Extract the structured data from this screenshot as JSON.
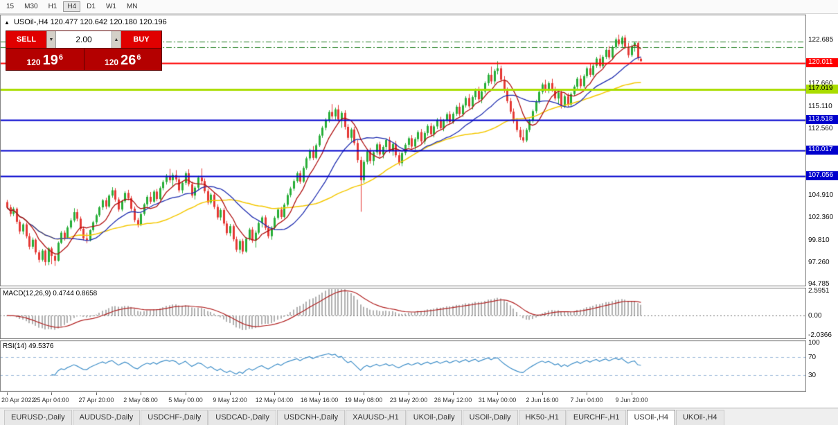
{
  "toolbar": {
    "timeframes": [
      "15",
      "M30",
      "H1",
      "H4",
      "D1",
      "W1",
      "MN"
    ],
    "active": "H4"
  },
  "chart": {
    "title_symbol": "USOil-,H4",
    "title_ohlc": "120.477 120.642 120.180 120.196",
    "collapse_icon": "▲",
    "trade_panel": {
      "sell_label": "SELL",
      "buy_label": "BUY",
      "volume": "2.00",
      "down_icon": "▼",
      "up_icon": "▲",
      "sell": {
        "prefix": "120",
        "big": "19",
        "sup": "6"
      },
      "buy": {
        "prefix": "120",
        "big": "26",
        "sup": "6"
      }
    },
    "price_axis": {
      "labels": [
        "122.685",
        "117.660",
        "115.110",
        "112.560",
        "104.910",
        "102.360",
        "99.810",
        "97.260",
        "94.785"
      ]
    },
    "hlines": [
      {
        "price": 120.011,
        "label": "120.011",
        "color": "#ff0000",
        "width": 2,
        "style": "solid",
        "tag_bg": "#ff0000",
        "tag_fg": "#ffffff"
      },
      {
        "price": 117.019,
        "label": "117.019",
        "color": "#aadd00",
        "width": 3,
        "style": "solid",
        "tag_bg": "#aadd00",
        "tag_fg": "#000000"
      },
      {
        "price": 113.518,
        "label": "113.518",
        "color": "#0000cd",
        "width": 2,
        "style": "solid",
        "tag_bg": "#0000cd",
        "tag_fg": "#ffffff"
      },
      {
        "price": 110.017,
        "label": "110.017",
        "color": "#0000cd",
        "width": 2,
        "style": "solid",
        "tag_bg": "#0000cd",
        "tag_fg": "#ffffff"
      },
      {
        "price": 107.056,
        "label": "107.056",
        "color": "#0000cd",
        "width": 2,
        "style": "solid",
        "tag_bg": "#0000cd",
        "tag_fg": "#ffffff"
      },
      {
        "price": 122.45,
        "label": null,
        "color": "#1e7d1e",
        "width": 1,
        "style": "dashdot"
      },
      {
        "price": 121.85,
        "label": null,
        "color": "#1e7d1e",
        "width": 1,
        "style": "dashdot"
      }
    ],
    "candle_colors": {
      "up": "#27ae38",
      "down": "#e53935"
    },
    "ma_colors": {
      "fast": "#b01010",
      "mid": "#1f2db0",
      "slow": "#f5c800"
    }
  },
  "macd": {
    "label": "MACD(12,26,9)",
    "values": "0.4744 0.8658",
    "axis_labels": [
      "2.5951",
      "0.00",
      "-2.0366"
    ],
    "params": {
      "fast": 12,
      "slow": 26,
      "signal": 9
    },
    "y_range": [
      -2.45,
      2.9
    ],
    "bar_color": "#b0b0b0",
    "signal_color": "#b22222"
  },
  "rsi": {
    "label": "RSI(14)",
    "value": "49.5376",
    "axis_labels": [
      "100",
      "70",
      "30"
    ],
    "levels": [
      70,
      30
    ],
    "period": 14,
    "y_range": [
      -5,
      105
    ],
    "line_color": "#3f8fc9",
    "level_color": "#9ab7d9"
  },
  "tabbar": {
    "tabs": [
      "EURUSD-,Daily",
      "AUDUSD-,Daily",
      "USDCHF-,Daily",
      "USDCAD-,Daily",
      "USDCNH-,Daily",
      "XAUUSD-,H1",
      "UKOil-,Daily",
      "USOil-,Daily",
      "HK50-,H1",
      "EURCHF-,H1",
      "USOil-,H4",
      "UKOil-,H4"
    ],
    "active": "USOil-,H4"
  },
  "chart_data": {
    "type": "candlestick",
    "title": "USOil-,H4",
    "timeframe": "H4",
    "y_range": [
      94.47,
      125.54
    ],
    "x_labels": [
      "20 Apr 2022",
      "25 Apr 04:00",
      "27 Apr 20:00",
      "2 May 08:00",
      "5 May 00:00",
      "9 May 12:00",
      "12 May 04:00",
      "16 May 16:00",
      "19 May 08:00",
      "23 May 20:00",
      "26 May 12:00",
      "31 May 00:00",
      "2 Jun 16:00",
      "7 Jun 04:00",
      "9 Jun 20:00"
    ],
    "x_label_indices": [
      0,
      14,
      28,
      42,
      56,
      70,
      84,
      98,
      112,
      126,
      140,
      154,
      168,
      182,
      196
    ],
    "overlays": [
      {
        "name": "ma-fast",
        "period": 8,
        "color": "#b01010"
      },
      {
        "name": "ma-mid",
        "period": 20,
        "color": "#1f2db0"
      },
      {
        "name": "ma-slow",
        "period": 45,
        "color": "#f5c800"
      }
    ],
    "ohlc": [
      [
        104.1,
        104.35,
        103.3,
        103.5
      ],
      [
        103.5,
        103.8,
        102.45,
        102.75
      ],
      [
        102.75,
        103.55,
        102.5,
        103.35
      ],
      [
        103.35,
        103.5,
        101.6,
        101.85
      ],
      [
        101.85,
        102.1,
        100.45,
        100.75
      ],
      [
        100.75,
        101.7,
        100.4,
        101.55
      ],
      [
        101.55,
        101.75,
        99.95,
        100.2
      ],
      [
        100.2,
        100.55,
        98.7,
        99.0
      ],
      [
        99.0,
        100.05,
        98.75,
        99.8
      ],
      [
        99.8,
        99.95,
        98.1,
        98.35
      ],
      [
        98.35,
        98.6,
        97.2,
        97.5
      ],
      [
        97.5,
        98.75,
        97.3,
        98.55
      ],
      [
        98.55,
        98.7,
        96.85,
        97.25
      ],
      [
        97.25,
        98.95,
        96.9,
        98.8
      ],
      [
        98.8,
        99.0,
        97.0,
        97.95
      ],
      [
        97.95,
        98.25,
        96.8,
        97.4
      ],
      [
        97.4,
        99.6,
        97.3,
        99.45
      ],
      [
        99.45,
        100.8,
        99.3,
        100.6
      ],
      [
        100.6,
        100.85,
        99.7,
        100.0
      ],
      [
        100.0,
        101.4,
        99.9,
        101.2
      ],
      [
        101.2,
        102.25,
        101.0,
        102.0
      ],
      [
        102.0,
        103.4,
        101.8,
        102.95
      ],
      [
        102.95,
        103.3,
        101.9,
        102.2
      ],
      [
        102.2,
        102.45,
        100.8,
        101.05
      ],
      [
        101.05,
        101.3,
        99.7,
        99.95
      ],
      [
        99.95,
        100.6,
        99.4,
        99.75
      ],
      [
        99.75,
        101.0,
        99.6,
        100.9
      ],
      [
        100.9,
        101.95,
        100.7,
        101.8
      ],
      [
        101.8,
        102.75,
        101.55,
        102.6
      ],
      [
        102.6,
        103.65,
        102.4,
        103.5
      ],
      [
        103.5,
        104.45,
        103.2,
        104.3
      ],
      [
        104.3,
        104.6,
        103.3,
        103.6
      ],
      [
        103.6,
        105.0,
        103.45,
        104.85
      ],
      [
        104.85,
        105.8,
        104.6,
        105.45
      ],
      [
        105.45,
        105.7,
        104.15,
        104.4
      ],
      [
        104.4,
        104.65,
        103.0,
        103.25
      ],
      [
        103.25,
        104.35,
        103.05,
        104.2
      ],
      [
        104.2,
        105.35,
        104.0,
        105.15
      ],
      [
        105.15,
        105.5,
        104.3,
        104.55
      ],
      [
        104.55,
        104.8,
        103.1,
        103.35
      ],
      [
        103.35,
        103.6,
        101.8,
        102.05
      ],
      [
        102.05,
        102.3,
        101.2,
        101.5
      ],
      [
        101.5,
        102.9,
        101.35,
        102.75
      ],
      [
        102.75,
        104.0,
        102.55,
        103.85
      ],
      [
        103.85,
        104.9,
        103.6,
        104.7
      ],
      [
        104.7,
        105.25,
        103.9,
        104.15
      ],
      [
        104.15,
        105.5,
        104.0,
        105.3
      ],
      [
        105.3,
        105.6,
        104.2,
        104.45
      ],
      [
        104.45,
        105.9,
        104.3,
        105.7
      ],
      [
        105.7,
        106.6,
        105.45,
        106.4
      ],
      [
        106.4,
        107.3,
        106.1,
        107.1
      ],
      [
        107.1,
        107.9,
        106.3,
        106.6
      ],
      [
        106.6,
        107.45,
        105.8,
        107.2
      ],
      [
        107.2,
        107.75,
        106.4,
        106.7
      ],
      [
        106.7,
        107.0,
        105.2,
        105.45
      ],
      [
        105.45,
        106.5,
        105.1,
        106.3
      ],
      [
        106.3,
        107.6,
        106.05,
        107.4
      ],
      [
        107.4,
        107.85,
        105.9,
        106.15
      ],
      [
        106.15,
        106.45,
        104.6,
        104.85
      ],
      [
        104.85,
        105.95,
        104.4,
        105.75
      ],
      [
        105.75,
        107.1,
        105.55,
        106.9
      ],
      [
        106.9,
        107.95,
        106.2,
        106.5
      ],
      [
        106.5,
        106.8,
        105.1,
        105.35
      ],
      [
        105.35,
        105.6,
        103.8,
        104.05
      ],
      [
        104.05,
        105.15,
        103.85,
        104.95
      ],
      [
        104.95,
        105.2,
        103.3,
        103.55
      ],
      [
        103.55,
        103.85,
        102.1,
        102.35
      ],
      [
        102.35,
        103.4,
        102.0,
        103.2
      ],
      [
        103.2,
        103.45,
        101.4,
        101.65
      ],
      [
        101.65,
        101.95,
        100.3,
        100.55
      ],
      [
        100.55,
        101.6,
        100.2,
        101.35
      ],
      [
        101.35,
        101.55,
        99.6,
        99.85
      ],
      [
        99.85,
        100.15,
        98.4,
        98.65
      ],
      [
        98.65,
        99.85,
        98.25,
        99.65
      ],
      [
        99.65,
        99.9,
        98.15,
        98.45
      ],
      [
        98.45,
        100.1,
        98.3,
        99.9
      ],
      [
        99.9,
        101.15,
        99.7,
        100.95
      ],
      [
        100.95,
        101.25,
        99.45,
        99.7
      ],
      [
        99.7,
        100.85,
        98.9,
        100.6
      ],
      [
        100.6,
        101.9,
        100.4,
        101.7
      ],
      [
        101.7,
        102.55,
        101.2,
        102.35
      ],
      [
        102.35,
        102.6,
        100.9,
        101.15
      ],
      [
        101.15,
        101.45,
        99.95,
        100.2
      ],
      [
        100.2,
        101.35,
        99.8,
        101.15
      ],
      [
        101.15,
        102.5,
        100.95,
        102.3
      ],
      [
        102.3,
        103.45,
        102.1,
        103.25
      ],
      [
        103.25,
        103.55,
        102.15,
        102.4
      ],
      [
        102.4,
        104.0,
        102.25,
        103.8
      ],
      [
        103.8,
        105.1,
        103.6,
        104.9
      ],
      [
        104.9,
        105.85,
        104.65,
        105.65
      ],
      [
        105.65,
        106.7,
        105.4,
        106.5
      ],
      [
        106.5,
        107.6,
        106.3,
        107.4
      ],
      [
        107.4,
        107.7,
        106.2,
        106.45
      ],
      [
        106.45,
        108.2,
        106.3,
        108.0
      ],
      [
        108.0,
        109.3,
        107.8,
        109.1
      ],
      [
        109.1,
        110.2,
        108.85,
        110.0
      ],
      [
        110.0,
        110.5,
        108.9,
        109.15
      ],
      [
        109.15,
        110.8,
        109.0,
        110.6
      ],
      [
        110.6,
        111.9,
        110.4,
        111.7
      ],
      [
        111.7,
        112.8,
        111.45,
        112.6
      ],
      [
        112.6,
        113.7,
        112.3,
        113.5
      ],
      [
        113.5,
        114.6,
        113.2,
        114.4
      ],
      [
        114.4,
        115.3,
        113.6,
        113.9
      ],
      [
        113.9,
        114.9,
        113.5,
        114.7
      ],
      [
        114.7,
        115.2,
        113.3,
        113.55
      ],
      [
        113.55,
        114.5,
        112.6,
        114.3
      ],
      [
        114.3,
        114.6,
        112.4,
        112.7
      ],
      [
        112.7,
        113.0,
        111.2,
        111.45
      ],
      [
        111.45,
        112.6,
        111.0,
        112.4
      ],
      [
        112.4,
        112.7,
        110.6,
        110.85
      ],
      [
        110.85,
        111.2,
        108.6,
        108.9
      ],
      [
        108.9,
        109.3,
        103.0,
        106.6
      ],
      [
        106.6,
        108.9,
        106.3,
        108.7
      ],
      [
        108.7,
        110.1,
        108.4,
        109.9
      ],
      [
        109.9,
        110.3,
        108.5,
        108.8
      ],
      [
        108.8,
        110.0,
        108.3,
        109.8
      ],
      [
        109.8,
        110.9,
        109.5,
        110.7
      ],
      [
        110.7,
        111.0,
        109.3,
        109.55
      ],
      [
        109.55,
        110.6,
        109.1,
        110.4
      ],
      [
        110.4,
        111.4,
        110.1,
        111.2
      ],
      [
        111.2,
        111.55,
        109.7,
        109.95
      ],
      [
        109.95,
        110.95,
        109.4,
        110.75
      ],
      [
        110.75,
        111.1,
        109.2,
        109.45
      ],
      [
        109.45,
        109.8,
        108.3,
        108.55
      ],
      [
        108.55,
        109.9,
        108.2,
        109.7
      ],
      [
        109.7,
        110.85,
        109.45,
        110.65
      ],
      [
        110.65,
        111.6,
        110.35,
        111.4
      ],
      [
        111.4,
        111.75,
        110.2,
        110.45
      ],
      [
        110.45,
        111.5,
        110.05,
        111.3
      ],
      [
        111.3,
        112.3,
        111.0,
        112.1
      ],
      [
        112.1,
        112.45,
        110.8,
        111.05
      ],
      [
        111.05,
        112.2,
        110.7,
        112.0
      ],
      [
        112.0,
        113.0,
        111.7,
        112.8
      ],
      [
        112.8,
        113.15,
        111.6,
        111.85
      ],
      [
        111.85,
        112.95,
        111.5,
        112.75
      ],
      [
        112.75,
        113.7,
        112.45,
        113.5
      ],
      [
        113.5,
        113.85,
        112.3,
        112.55
      ],
      [
        112.55,
        113.6,
        112.2,
        113.4
      ],
      [
        113.4,
        114.35,
        113.1,
        114.15
      ],
      [
        114.15,
        114.5,
        113.0,
        113.25
      ],
      [
        113.25,
        114.4,
        113.05,
        114.2
      ],
      [
        114.2,
        115.2,
        113.95,
        115.0
      ],
      [
        115.0,
        115.45,
        113.9,
        114.15
      ],
      [
        114.15,
        115.35,
        113.85,
        115.15
      ],
      [
        115.15,
        116.2,
        114.9,
        116.0
      ],
      [
        116.0,
        116.45,
        114.8,
        115.05
      ],
      [
        115.05,
        116.3,
        114.7,
        116.1
      ],
      [
        116.1,
        117.1,
        115.8,
        116.9
      ],
      [
        116.9,
        117.3,
        115.6,
        115.85
      ],
      [
        115.85,
        116.95,
        115.4,
        116.75
      ],
      [
        116.75,
        117.9,
        116.5,
        117.7
      ],
      [
        117.7,
        118.85,
        117.4,
        118.65
      ],
      [
        118.65,
        119.6,
        117.6,
        117.9
      ],
      [
        117.9,
        119.3,
        117.55,
        119.1
      ],
      [
        119.1,
        120.2,
        118.7,
        119.4
      ],
      [
        119.4,
        119.7,
        117.8,
        118.1
      ],
      [
        118.1,
        118.5,
        116.6,
        116.85
      ],
      [
        116.85,
        117.2,
        115.4,
        115.65
      ],
      [
        115.65,
        116.0,
        114.2,
        114.45
      ],
      [
        114.45,
        114.8,
        113.1,
        113.35
      ],
      [
        113.35,
        113.7,
        112.1,
        112.35
      ],
      [
        112.35,
        112.7,
        111.2,
        111.5
      ],
      [
        111.5,
        112.4,
        110.9,
        111.15
      ],
      [
        111.15,
        112.55,
        110.95,
        112.35
      ],
      [
        112.35,
        113.6,
        112.1,
        113.4
      ],
      [
        113.4,
        114.7,
        113.15,
        114.5
      ],
      [
        114.5,
        115.8,
        114.25,
        115.6
      ],
      [
        115.6,
        116.9,
        115.35,
        116.7
      ],
      [
        116.7,
        117.75,
        116.45,
        117.55
      ],
      [
        117.55,
        118.1,
        116.6,
        116.85
      ],
      [
        116.85,
        117.9,
        116.55,
        117.7
      ],
      [
        117.7,
        118.2,
        116.7,
        116.95
      ],
      [
        116.95,
        117.3,
        115.7,
        115.95
      ],
      [
        115.95,
        116.8,
        115.3,
        116.6
      ],
      [
        116.6,
        116.9,
        114.8,
        115.1
      ],
      [
        115.1,
        116.4,
        114.85,
        116.2
      ],
      [
        116.2,
        116.55,
        115.0,
        115.25
      ],
      [
        115.25,
        116.65,
        115.05,
        116.45
      ],
      [
        116.45,
        117.5,
        116.2,
        117.3
      ],
      [
        117.3,
        118.4,
        117.05,
        118.2
      ],
      [
        118.2,
        118.6,
        117.1,
        117.35
      ],
      [
        117.35,
        118.7,
        117.15,
        118.5
      ],
      [
        118.5,
        119.6,
        118.25,
        119.4
      ],
      [
        119.4,
        119.95,
        118.4,
        118.65
      ],
      [
        118.65,
        119.9,
        118.45,
        119.7
      ],
      [
        119.7,
        120.7,
        119.45,
        120.5
      ],
      [
        120.5,
        120.95,
        119.4,
        119.65
      ],
      [
        119.65,
        120.9,
        119.45,
        120.7
      ],
      [
        120.7,
        121.7,
        120.45,
        121.5
      ],
      [
        121.5,
        121.95,
        120.4,
        120.65
      ],
      [
        120.65,
        122.0,
        120.45,
        121.8
      ],
      [
        121.8,
        122.9,
        121.55,
        122.7
      ],
      [
        122.7,
        123.25,
        121.9,
        122.15
      ],
      [
        122.15,
        123.1,
        121.8,
        122.9
      ],
      [
        122.9,
        123.2,
        121.6,
        121.85
      ],
      [
        121.85,
        122.3,
        120.6,
        120.9
      ],
      [
        120.9,
        122.1,
        120.7,
        121.9
      ],
      [
        121.9,
        122.45,
        121.3,
        122.3
      ],
      [
        122.3,
        122.5,
        120.3,
        120.55
      ],
      [
        120.48,
        120.64,
        120.18,
        120.2
      ]
    ]
  }
}
